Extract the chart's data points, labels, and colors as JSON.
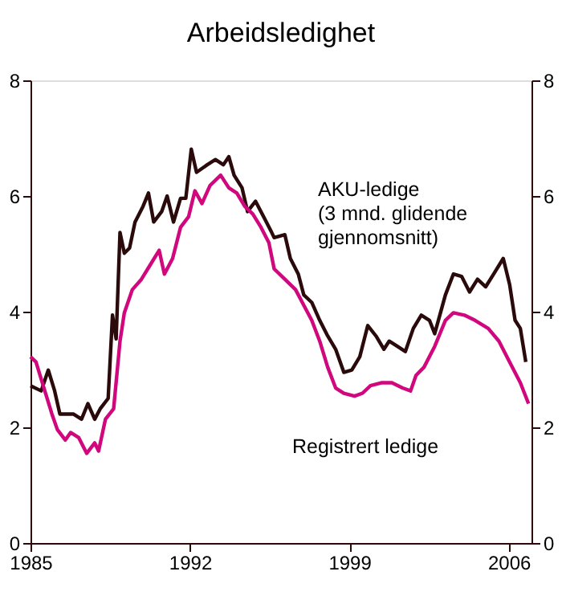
{
  "chart_data": {
    "type": "line",
    "title": "Arbeidsledighet",
    "xlim": [
      1985,
      2007
    ],
    "xticks": [
      1985,
      1992,
      1999,
      2006
    ],
    "ylim": [
      0,
      8
    ],
    "yticks": [
      0,
      2,
      4,
      6,
      8
    ],
    "y2lim": [
      0,
      8
    ],
    "y2ticks": [
      0,
      2,
      4,
      6,
      8
    ],
    "grid": false,
    "marker": "none",
    "line_style": "solid",
    "series": [
      {
        "name": "AKU-ledige\n(3 mnd. glidende\ngjennomsnitt)",
        "color": "#2a0a0a",
        "x": [
          1985.0,
          1985.47,
          1985.78,
          1986.06,
          1986.29,
          1986.88,
          1987.24,
          1987.52,
          1987.82,
          1988.06,
          1988.41,
          1988.6,
          1988.76,
          1988.93,
          1989.12,
          1989.35,
          1989.59,
          1989.94,
          1990.18,
          1990.41,
          1990.76,
          1991.0,
          1991.28,
          1991.59,
          1991.82,
          1992.06,
          1992.29,
          1992.76,
          1993.12,
          1993.47,
          1993.71,
          1993.94,
          1994.29,
          1994.53,
          1994.88,
          1995.24,
          1995.59,
          1995.7,
          1996.17,
          1996.41,
          1996.76,
          1997.0,
          1997.35,
          1997.7,
          1998.05,
          1998.4,
          1998.76,
          1999.11,
          1999.46,
          1999.81,
          2000.17,
          2000.52,
          2000.75,
          2001.11,
          2001.46,
          2001.81,
          2002.16,
          2002.52,
          2002.75,
          2003.22,
          2003.57,
          2003.93,
          2004.28,
          2004.63,
          2004.99,
          2005.34,
          2005.76,
          2006.04,
          2006.28,
          2006.51,
          2006.75
        ],
        "values": [
          2.72,
          2.63,
          2.99,
          2.63,
          2.23,
          2.23,
          2.14,
          2.41,
          2.14,
          2.32,
          2.5,
          3.94,
          3.53,
          5.37,
          5.01,
          5.1,
          5.55,
          5.82,
          6.05,
          5.55,
          5.73,
          6.0,
          5.55,
          5.96,
          5.96,
          6.81,
          6.41,
          6.54,
          6.63,
          6.54,
          6.68,
          6.36,
          6.14,
          5.73,
          5.91,
          5.64,
          5.37,
          5.28,
          5.33,
          4.92,
          4.65,
          4.29,
          4.16,
          3.85,
          3.58,
          3.35,
          2.95,
          2.99,
          3.22,
          3.76,
          3.58,
          3.35,
          3.49,
          3.4,
          3.31,
          3.71,
          3.94,
          3.85,
          3.62,
          4.29,
          4.65,
          4.61,
          4.34,
          4.56,
          4.43,
          4.65,
          4.92,
          4.47,
          3.85,
          3.71,
          3.13
        ]
      },
      {
        "name": "Registrert ledige",
        "color": "#d0077d",
        "x": [
          1985.0,
          1985.24,
          1985.59,
          1985.94,
          1986.18,
          1986.53,
          1986.76,
          1987.12,
          1987.47,
          1987.82,
          1987.99,
          1988.29,
          1988.65,
          1988.93,
          1989.12,
          1989.47,
          1989.87,
          1990.29,
          1990.65,
          1990.88,
          1991.24,
          1991.59,
          1991.94,
          1992.22,
          1992.53,
          1992.88,
          1993.35,
          1993.71,
          1994.06,
          1994.41,
          1994.76,
          1995.12,
          1995.47,
          1995.7,
          1996.17,
          1996.64,
          1997.0,
          1997.35,
          1997.7,
          1998.05,
          1998.4,
          1998.76,
          1999.23,
          1999.58,
          1999.93,
          2000.4,
          2000.87,
          2001.34,
          2001.69,
          2001.93,
          2002.28,
          2002.75,
          2003.22,
          2003.57,
          2004.05,
          2004.52,
          2005.1,
          2005.57,
          2006.04,
          2006.51,
          2006.87
        ],
        "values": [
          3.22,
          3.13,
          2.68,
          2.23,
          1.96,
          1.78,
          1.91,
          1.82,
          1.55,
          1.73,
          1.59,
          2.14,
          2.32,
          3.49,
          3.98,
          4.38,
          4.56,
          4.83,
          5.06,
          4.65,
          4.92,
          5.46,
          5.64,
          6.09,
          5.87,
          6.18,
          6.36,
          6.14,
          6.05,
          5.82,
          5.69,
          5.46,
          5.19,
          4.74,
          4.56,
          4.38,
          4.11,
          3.85,
          3.49,
          3.04,
          2.68,
          2.59,
          2.54,
          2.59,
          2.72,
          2.77,
          2.77,
          2.68,
          2.63,
          2.9,
          3.04,
          3.4,
          3.85,
          3.98,
          3.94,
          3.85,
          3.71,
          3.49,
          3.13,
          2.77,
          2.41
        ]
      }
    ]
  }
}
